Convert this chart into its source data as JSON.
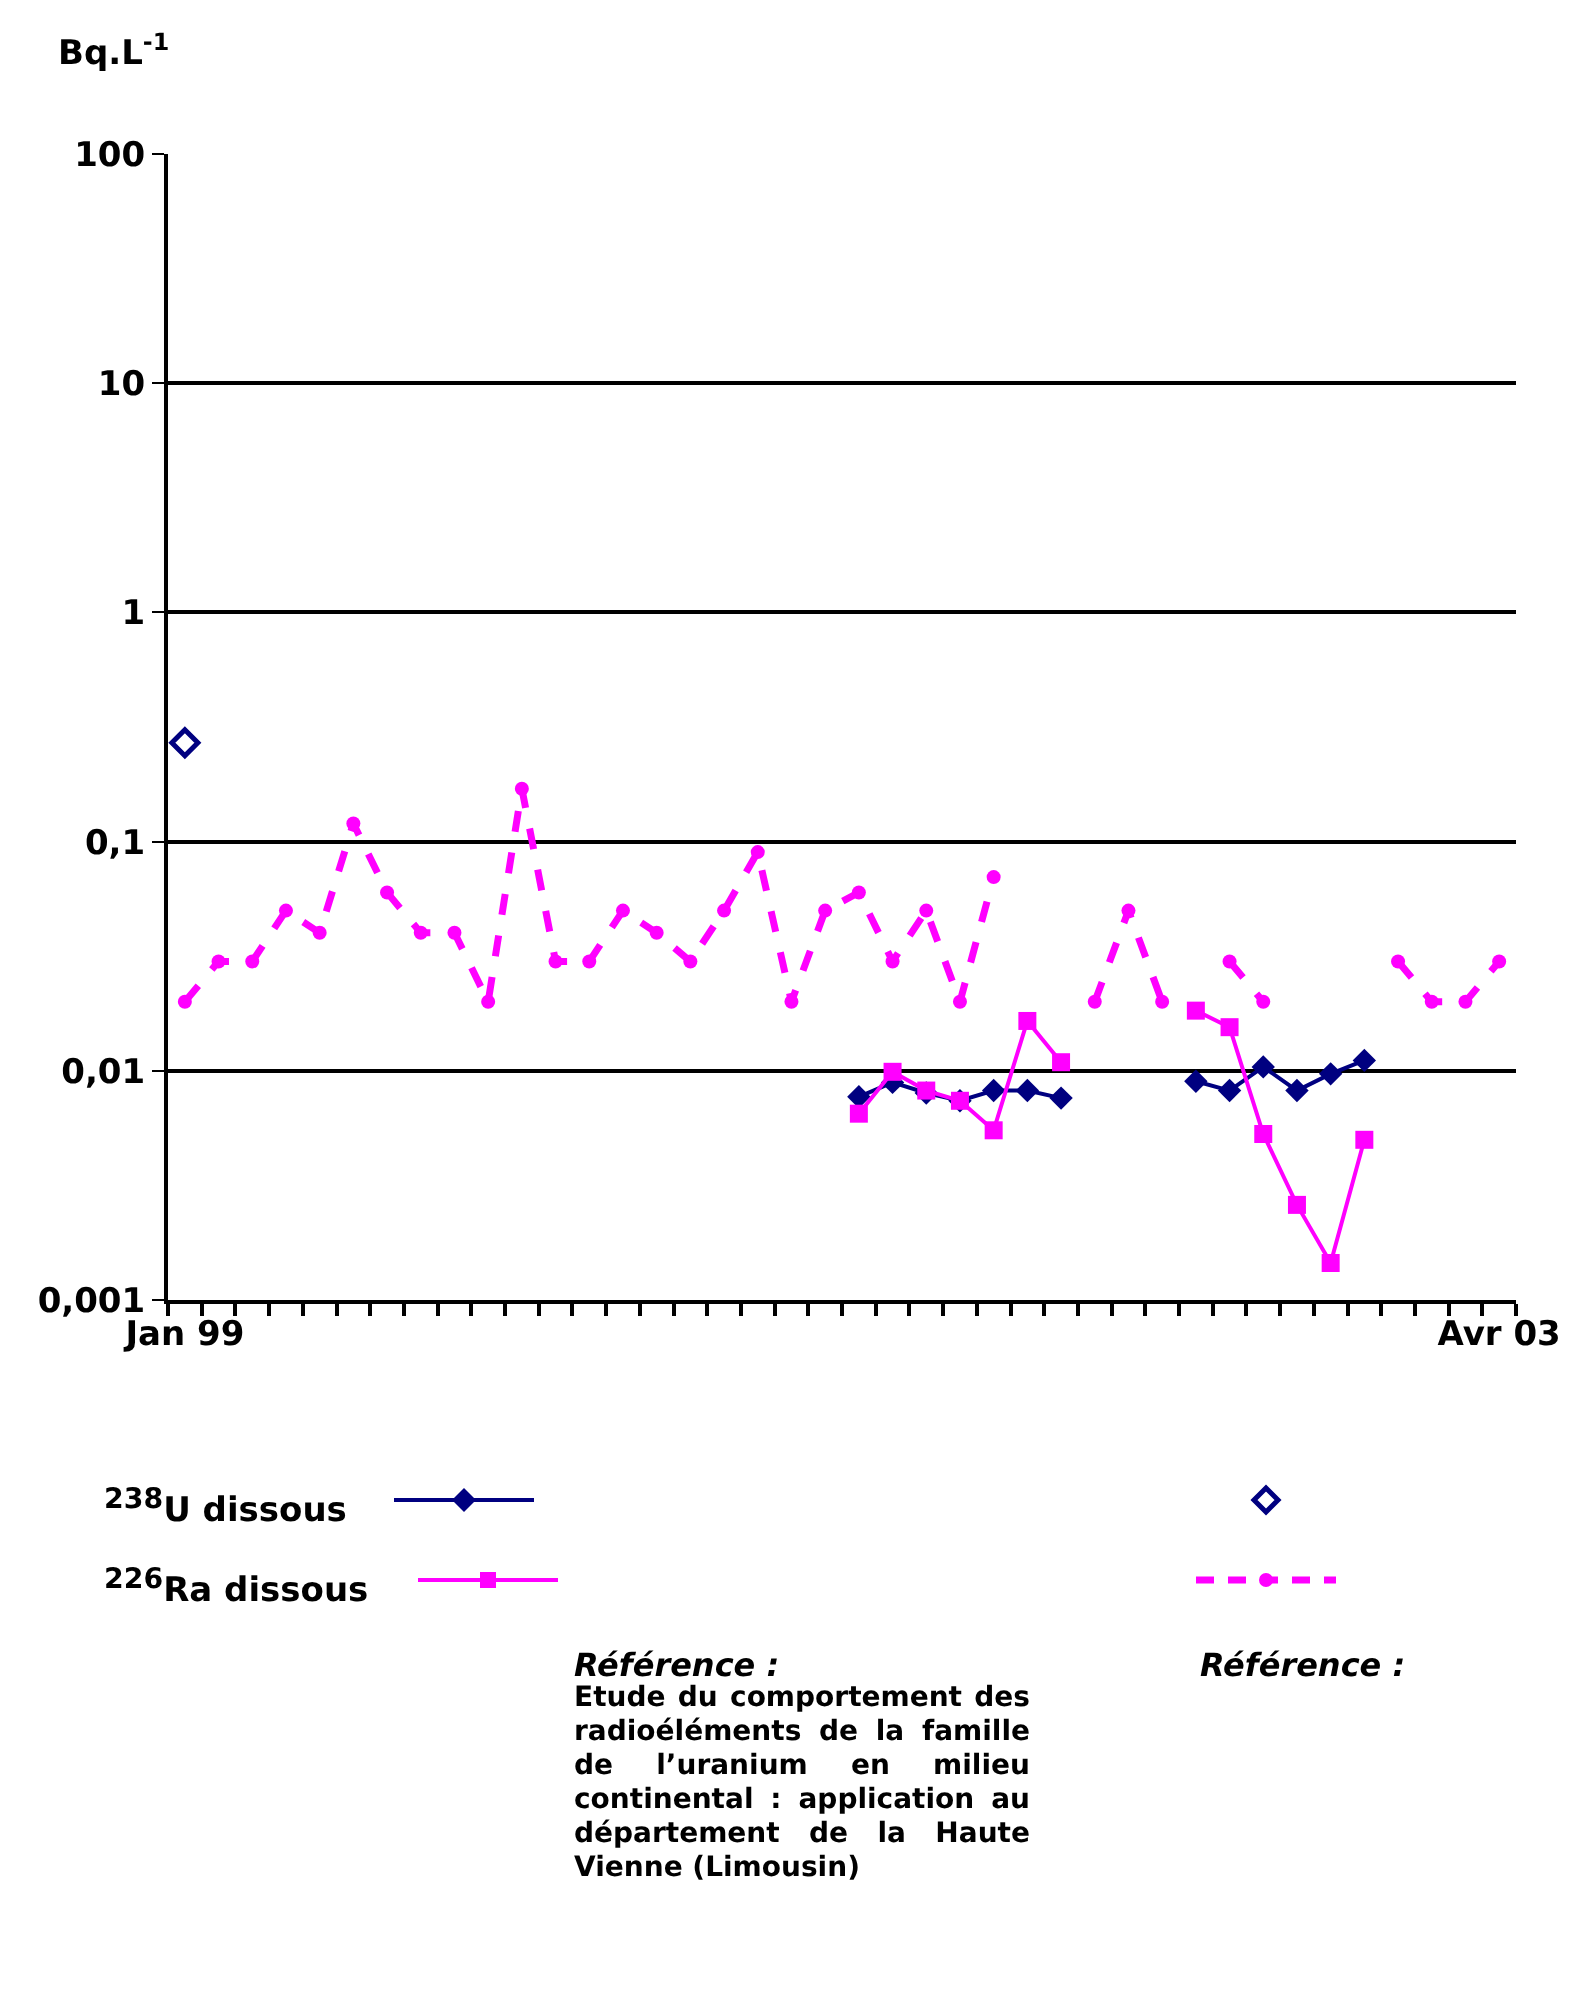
{
  "chart_data": {
    "type": "line",
    "ylabel": "Bq.L$^{-1}$",
    "categories": [
      "Jan 99",
      null,
      null,
      null,
      null,
      null,
      null,
      null,
      null,
      null,
      null,
      null,
      null,
      null,
      null,
      null,
      null,
      null,
      null,
      null,
      null,
      null,
      null,
      null,
      null,
      null,
      null,
      null,
      null,
      null,
      null,
      null,
      null,
      null,
      null,
      null,
      null,
      null,
      null,
      "Avr 03"
    ],
    "series": [
      {
        "name": "$^{238}$U dissous",
        "color": "#000080",
        "type": "line",
        "marker": "diamond",
        "line_style": "solid",
        "values": [
          null,
          null,
          null,
          null,
          null,
          null,
          null,
          null,
          null,
          null,
          null,
          null,
          null,
          null,
          null,
          null,
          null,
          null,
          null,
          null,
          0.0077,
          0.0089,
          0.008,
          0.0074,
          0.0082,
          0.0082,
          0.0076,
          null,
          null,
          null,
          0.009,
          0.0082,
          0.0104,
          0.0082,
          0.0097,
          0.0111,
          null,
          null,
          null,
          null
        ]
      },
      {
        "name": "$^{226}$Ra dissous",
        "color": "#ff00ff",
        "type": "line",
        "marker": "square",
        "line_style": "solid",
        "values": [
          null,
          null,
          null,
          null,
          null,
          null,
          null,
          null,
          null,
          null,
          null,
          null,
          null,
          null,
          null,
          null,
          null,
          null,
          null,
          null,
          0.0065,
          0.0099,
          0.0082,
          0.0074,
          0.0055,
          0.0165,
          0.0109,
          null,
          null,
          null,
          0.0183,
          0.0155,
          0.0053,
          0.0026,
          0.00145,
          0.005,
          null,
          null,
          null,
          null
        ]
      },
      {
        "color": "#000080",
        "type": "scatter",
        "marker": "diamond",
        "values": [
          0.27,
          null,
          null,
          null,
          null,
          null,
          null,
          null,
          null,
          null,
          null,
          null,
          null,
          null,
          null,
          null,
          null,
          null,
          null,
          null,
          null,
          null,
          null,
          null,
          null,
          null,
          null,
          null,
          null,
          null,
          null,
          null,
          null,
          null,
          null,
          null,
          null,
          null,
          null,
          null
        ]
      },
      {
        "color": "#ff00ff",
        "type": "line",
        "marker": "circle",
        "line_style": "dashed",
        "values": [
          0.02,
          0.03,
          0.03,
          0.05,
          0.04,
          0.12,
          0.06,
          0.04,
          0.04,
          0.02,
          0.17,
          0.03,
          0.03,
          0.05,
          0.04,
          0.03,
          0.05,
          0.09,
          0.02,
          0.05,
          0.06,
          0.03,
          0.05,
          0.02,
          0.07,
          null,
          null,
          0.02,
          0.05,
          0.02,
          null,
          0.03,
          0.02,
          null,
          null,
          null,
          0.03,
          0.02,
          0.02,
          0.03
        ]
      }
    ],
    "ylim": [
      0.001,
      100
    ],
    "yticks": [
      {
        "value": 0.001,
        "label": "0,001"
      },
      {
        "value": 0.01,
        "label": "0,01"
      },
      {
        "value": 0.1,
        "label": "0,1"
      },
      1,
      10,
      100
    ],
    "log": "y",
    "grid": "y",
    "legend": "bottom",
    "annotations": [
      "Référence :",
      "Etude du comportement des radioéléments de la famille de l’uranium en milieu continental : application au département de la Haute Vienne (Limousin)",
      "Référence :"
    ]
  }
}
